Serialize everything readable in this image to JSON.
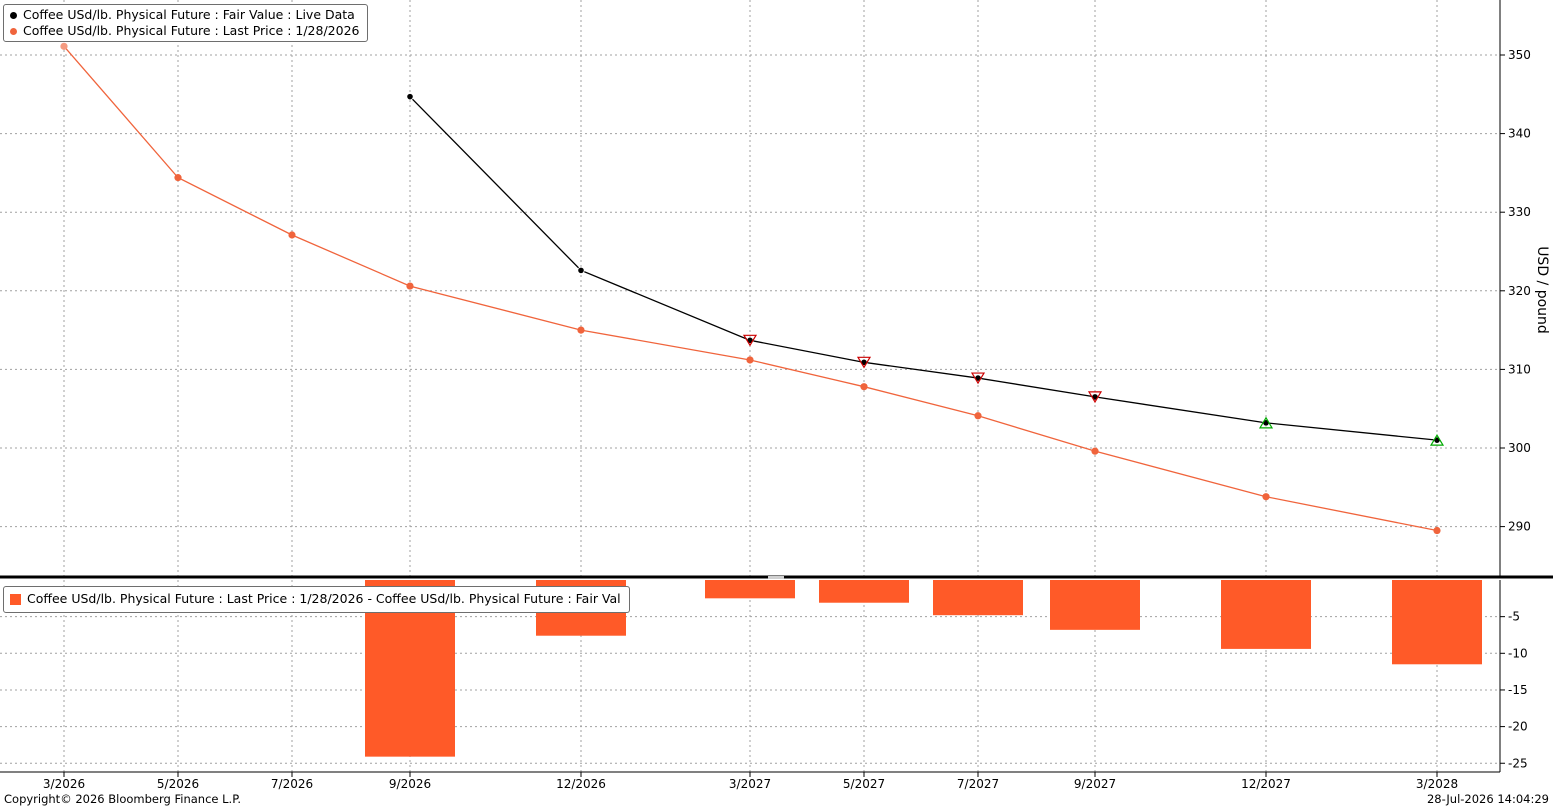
{
  "legend_top": {
    "items": [
      {
        "label": "Coffee USd/lb. Physical Future : Fair Value : Live Data",
        "color": "#000000"
      },
      {
        "label": "Coffee USd/lb. Physical Future : Last Price : 1/28/2026",
        "color": "#f0643c"
      }
    ]
  },
  "legend_bottom": {
    "label": "Coffee USd/lb. Physical Future : Last Price : 1/28/2026 - Coffee USd/lb. Physical Future : Fair Val",
    "color": "#ff5a28"
  },
  "footer": {
    "copyright": "Copyright© 2026 Bloomberg Finance L.P.",
    "timestamp": "28-Jul-2026 14:04:29"
  },
  "chart_data": [
    {
      "type": "line",
      "x_categories": [
        "3/2026",
        "5/2026",
        "7/2026",
        "9/2026",
        "12/2026",
        "3/2027",
        "5/2027",
        "7/2027",
        "9/2027",
        "12/2027",
        "3/2028"
      ],
      "ylabel": "USD / pound",
      "y_ticks": [
        290,
        300,
        310,
        320,
        330,
        340,
        350
      ],
      "grid": true,
      "legend_position": "top-left",
      "series": [
        {
          "name": "Coffee USd/lb. Physical Future : Fair Value : Live Data",
          "color": "#000000",
          "points": [
            {
              "x": "9/2026",
              "y": 344.7
            },
            {
              "x": "12/2026",
              "y": 322.6
            },
            {
              "x": "3/2027",
              "y": 313.7
            },
            {
              "x": "5/2027",
              "y": 310.9
            },
            {
              "x": "7/2027",
              "y": 308.9
            },
            {
              "x": "9/2027",
              "y": 306.5
            },
            {
              "x": "12/2027",
              "y": 303.2
            },
            {
              "x": "3/2028",
              "y": 301.0
            }
          ],
          "markers": [
            {
              "x": "3/2027",
              "marker": "triangle-down",
              "color": "#cc0000"
            },
            {
              "x": "5/2027",
              "marker": "triangle-down",
              "color": "#cc0000"
            },
            {
              "x": "7/2027",
              "marker": "triangle-down",
              "color": "#cc0000"
            },
            {
              "x": "9/2027",
              "marker": "triangle-down",
              "color": "#cc0000"
            },
            {
              "x": "12/2027",
              "marker": "triangle-up",
              "color": "#00aa00"
            },
            {
              "x": "3/2028",
              "marker": "triangle-up",
              "color": "#00aa00"
            }
          ]
        },
        {
          "name": "Coffee USd/lb. Physical Future : Last Price : 1/28/2026",
          "color": "#f0643c",
          "points": [
            {
              "x": "3/2026",
              "y": 351.1
            },
            {
              "x": "5/2026",
              "y": 334.4
            },
            {
              "x": "7/2026",
              "y": 327.1
            },
            {
              "x": "9/2026",
              "y": 320.6
            },
            {
              "x": "12/2026",
              "y": 315.0
            },
            {
              "x": "3/2027",
              "y": 311.2
            },
            {
              "x": "5/2027",
              "y": 307.8
            },
            {
              "x": "7/2027",
              "y": 304.1
            },
            {
              "x": "9/2027",
              "y": 299.6
            },
            {
              "x": "12/2027",
              "y": 293.8
            },
            {
              "x": "3/2028",
              "y": 289.5
            }
          ]
        }
      ]
    },
    {
      "type": "bar",
      "y_ticks": [
        -5,
        -10,
        -15,
        -20,
        -25
      ],
      "grid": true,
      "legend_position": "top-left",
      "series": [
        {
          "name": "Coffee USd/lb. Physical Future : Last Price : 1/28/2026 - Coffee USd/lb. Physical Future : Fair Val",
          "color": "#ff5a28",
          "points": [
            {
              "x": "9/2026",
              "y": -24.1
            },
            {
              "x": "12/2026",
              "y": -7.6
            },
            {
              "x": "3/2027",
              "y": -2.5
            },
            {
              "x": "5/2027",
              "y": -3.1
            },
            {
              "x": "7/2027",
              "y": -4.8
            },
            {
              "x": "9/2027",
              "y": -6.8
            },
            {
              "x": "12/2027",
              "y": -9.4
            },
            {
              "x": "3/2028",
              "y": -11.5
            }
          ]
        }
      ]
    }
  ]
}
